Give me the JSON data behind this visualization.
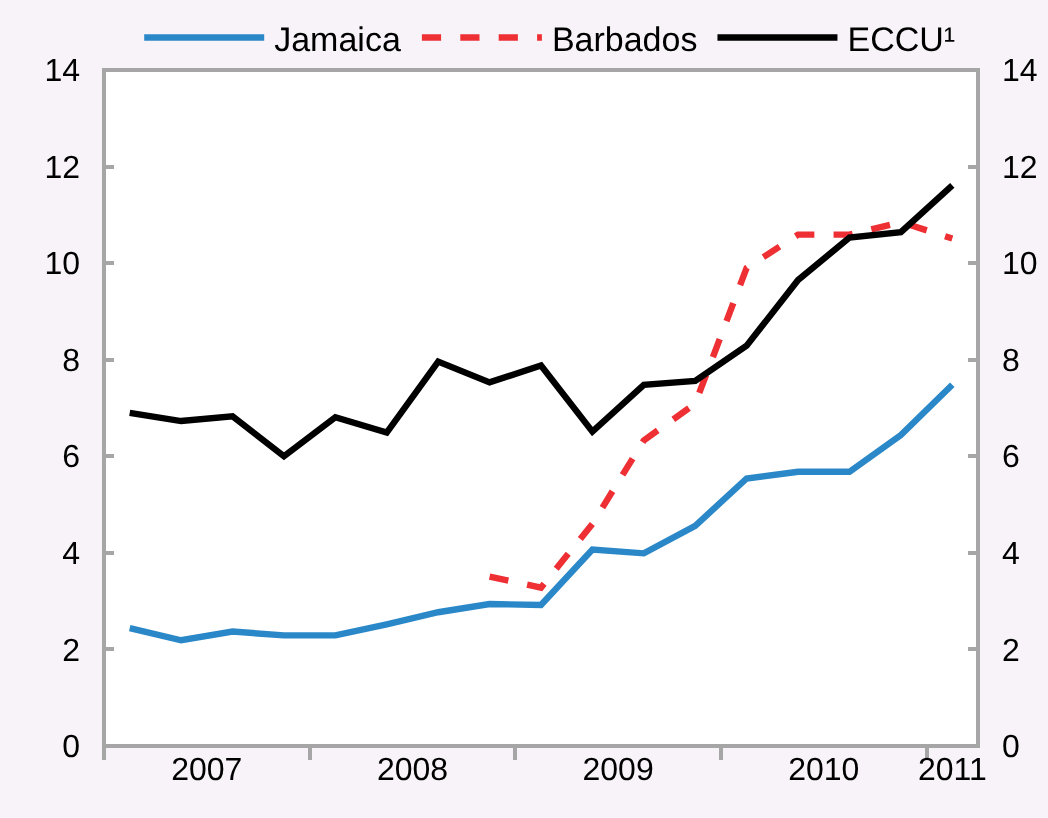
{
  "chart_data": {
    "type": "line",
    "x": [
      2007.125,
      2007.375,
      2007.625,
      2007.875,
      2008.125,
      2008.375,
      2008.625,
      2008.875,
      2009.125,
      2009.375,
      2009.625,
      2009.875,
      2010.125,
      2010.375,
      2010.625,
      2010.875,
      2011.125
    ],
    "series": [
      {
        "name": "Jamaica",
        "color": "#2b88c8",
        "line_style": "solid",
        "values": [
          2.44,
          2.19,
          2.37,
          2.29,
          2.29,
          2.52,
          2.77,
          2.94,
          2.92,
          4.07,
          3.99,
          4.56,
          5.54,
          5.68,
          5.68,
          6.44,
          7.48
        ]
      },
      {
        "name": "Barbados",
        "color": "#ee2f34",
        "line_style": "dashed",
        "values": [
          null,
          null,
          null,
          null,
          null,
          null,
          null,
          3.51,
          3.28,
          4.6,
          6.33,
          7.09,
          9.9,
          10.59,
          10.59,
          10.85,
          10.51
        ]
      },
      {
        "name": "ECCU¹",
        "color": "#000000",
        "line_style": "solid",
        "values": [
          6.9,
          6.73,
          6.83,
          6.0,
          6.81,
          6.49,
          7.96,
          7.53,
          7.88,
          6.51,
          7.48,
          7.56,
          8.29,
          9.65,
          10.53,
          10.64,
          11.61
        ]
      }
    ],
    "xlim": [
      2007,
      2011.25
    ],
    "xticks": [
      {
        "value": 2007,
        "label": null
      },
      {
        "value": 2007.5,
        "label": "2007"
      },
      {
        "value": 2008,
        "label": null
      },
      {
        "value": 2008.5,
        "label": "2008"
      },
      {
        "value": 2009,
        "label": null
      },
      {
        "value": 2009.5,
        "label": "2009"
      },
      {
        "value": 2010,
        "label": null
      },
      {
        "value": 2010.5,
        "label": "2010"
      },
      {
        "value": 2011,
        "label": null
      },
      {
        "value": 2011.125,
        "label": "2011"
      }
    ],
    "ylim": [
      0,
      14
    ],
    "yticks": [
      0,
      2,
      4,
      6,
      8,
      10,
      12,
      14
    ],
    "y2lim": [
      0,
      14
    ],
    "y2ticks": [
      0,
      2,
      4,
      6,
      8,
      10,
      12,
      14
    ],
    "grid": false,
    "legend": "top"
  }
}
